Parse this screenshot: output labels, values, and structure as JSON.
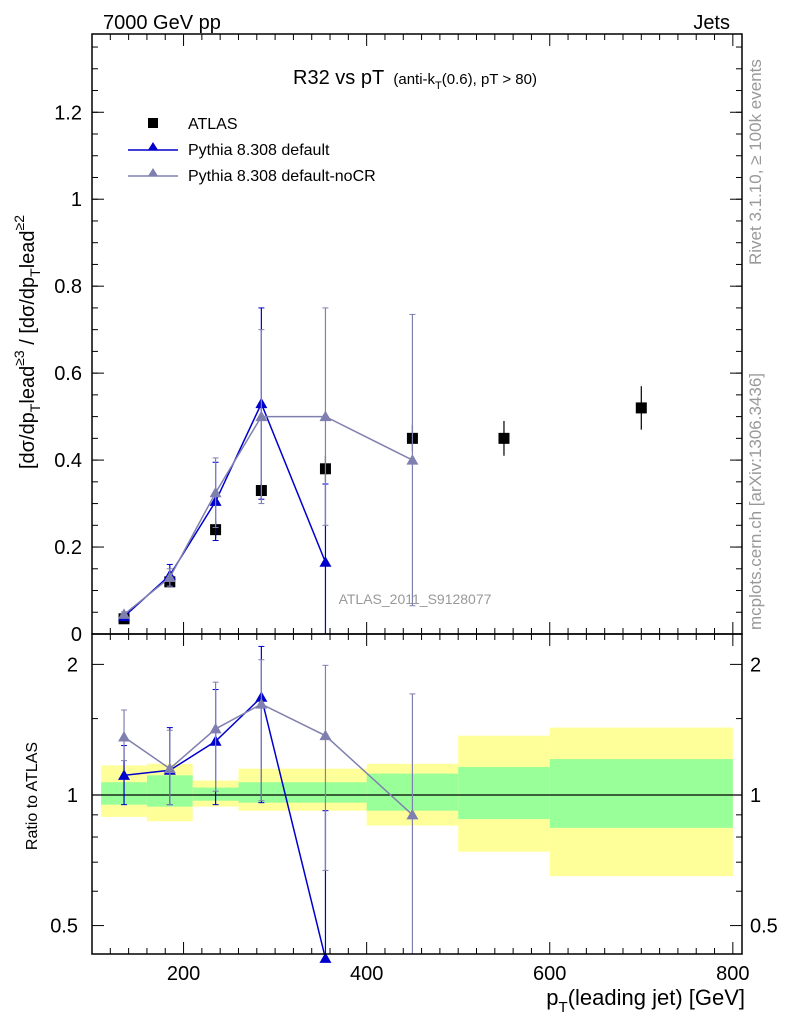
{
  "header": {
    "left": "7000 GeV pp",
    "right": "Jets"
  },
  "side_labels": {
    "rivet": "Rivet 3.1.10, ≥ 100k events",
    "mcplots": "mcplots.cern.ch [arXiv:1306.3436]"
  },
  "colors": {
    "atlas": "#000000",
    "pythia_default": "#0000cc",
    "pythia_nocr": "#8080b0",
    "band_green": "#99ff99",
    "band_yellow": "#ffff99",
    "label_grey": "#999999"
  },
  "chart_data": [
    {
      "type": "scatter",
      "panel": "main",
      "title": "R32 vs pT",
      "title_suffix": "(anti-k",
      "title_sub": "T",
      "title_rest": "(0.6), pT > 80)",
      "ylabel": "[dσ/dp_T^lead]^{≥3} / [dσ/dp_T^lead]^{≥2}",
      "ylim": [
        0,
        1.38
      ],
      "xlim": [
        100,
        810
      ],
      "yticks": [
        "0",
        "0.2",
        "0.4",
        "0.6",
        "0.8",
        "1",
        "1.2"
      ],
      "analysis_label": "ATLAS_2011_S9128077",
      "legend": {
        "atlas": "ATLAS",
        "pythia_default": "Pythia 8.308 default",
        "pythia_nocr": "Pythia 8.308 default-noCR"
      },
      "series": [
        {
          "name": "ATLAS",
          "marker": "square",
          "x": [
            135,
            185,
            235,
            285,
            355,
            450,
            550,
            700
          ],
          "y": [
            0.035,
            0.12,
            0.24,
            0.33,
            0.38,
            0.45,
            0.45,
            0.52
          ],
          "yerr": [
            0.005,
            0.01,
            0.02,
            0.02,
            0.03,
            0.03,
            0.04,
            0.05
          ]
        },
        {
          "name": "Pythia 8.308 default",
          "marker": "triangle",
          "x": [
            135,
            185,
            235,
            285,
            355
          ],
          "y": [
            0.04,
            0.135,
            0.305,
            0.53,
            0.165
          ],
          "yerr": [
            0.005,
            0.025,
            0.09,
            0.22,
            0.18
          ]
        },
        {
          "name": "Pythia 8.308 default-noCR",
          "marker": "triangle",
          "x": [
            135,
            185,
            235,
            285,
            355,
            450
          ],
          "y": [
            0.045,
            0.13,
            0.325,
            0.5,
            0.5,
            0.4
          ],
          "yerr": [
            0.006,
            0.02,
            0.08,
            0.2,
            0.25,
            0.335
          ]
        }
      ]
    },
    {
      "type": "scatter",
      "panel": "ratio",
      "ylabel": "Ratio to ATLAS",
      "ylim": [
        0.43,
        2.35
      ],
      "log_y": true,
      "xlim": [
        100,
        810
      ],
      "xlabel": "p_T(leading jet) [GeV]",
      "xticks": [
        "200",
        "400",
        "600",
        "800"
      ],
      "yticks": [
        "0.5",
        "1",
        "2"
      ],
      "bins": [
        {
          "lo": 110,
          "hi": 160,
          "green": [
            0.95,
            1.07
          ],
          "yellow": [
            0.89,
            1.17
          ]
        },
        {
          "lo": 160,
          "hi": 210,
          "green": [
            0.94,
            1.11
          ],
          "yellow": [
            0.87,
            1.18
          ]
        },
        {
          "lo": 210,
          "hi": 260,
          "green": [
            0.97,
            1.04
          ],
          "yellow": [
            0.94,
            1.08
          ]
        },
        {
          "lo": 260,
          "hi": 400,
          "green": [
            0.96,
            1.07
          ],
          "yellow": [
            0.92,
            1.15
          ]
        },
        {
          "lo": 400,
          "hi": 500,
          "green": [
            0.92,
            1.12
          ],
          "yellow": [
            0.85,
            1.18
          ]
        },
        {
          "lo": 500,
          "hi": 600,
          "green": [
            0.88,
            1.16
          ],
          "yellow": [
            0.74,
            1.37
          ]
        },
        {
          "lo": 600,
          "hi": 800,
          "green": [
            0.84,
            1.21
          ],
          "yellow": [
            0.65,
            1.43
          ]
        }
      ],
      "series": [
        {
          "name": "Pythia 8.308 default",
          "x": [
            135,
            185,
            235,
            285,
            355
          ],
          "y": [
            1.11,
            1.14,
            1.33,
            1.68,
            0.42
          ],
          "err_lo": [
            0.95,
            0.95,
            0.95,
            0.96,
            0.1
          ],
          "err_hi": [
            1.3,
            1.43,
            1.75,
            2.2,
            0.92
          ]
        },
        {
          "name": "Pythia 8.308 default-noCR",
          "x": [
            135,
            185,
            235,
            285,
            355,
            450
          ],
          "y": [
            1.36,
            1.15,
            1.42,
            1.62,
            1.37,
            0.9
          ],
          "err_lo": [
            1.2,
            0.95,
            1.02,
            0.97,
            0.67,
            0.1
          ],
          "err_hi": [
            1.57,
            1.41,
            1.82,
            2.05,
            1.99,
            1.71
          ]
        }
      ]
    }
  ]
}
